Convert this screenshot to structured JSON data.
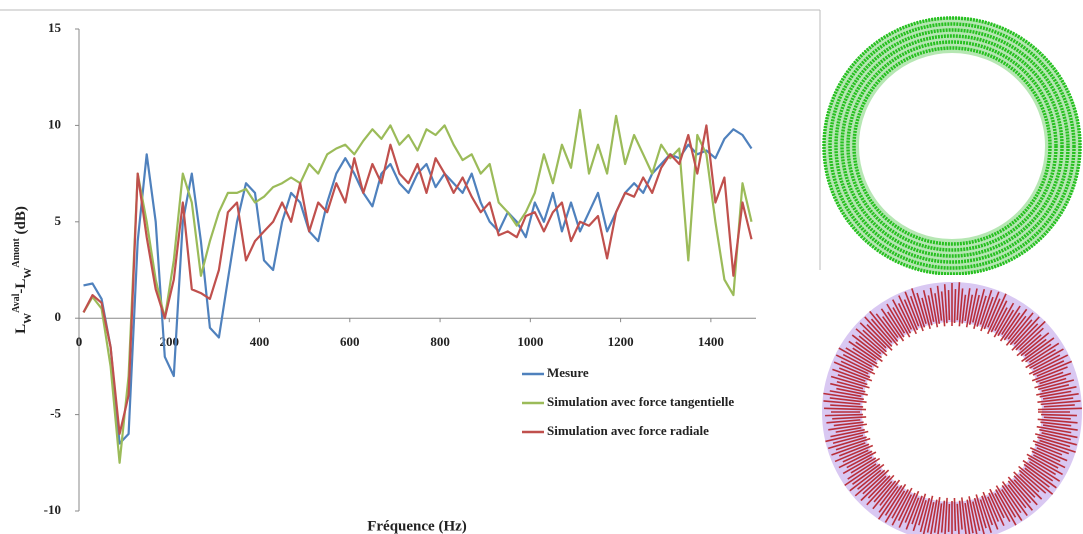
{
  "chart_data": {
    "type": "line",
    "y_label": [
      {
        "text": "L"
      },
      {
        "text": "W",
        "style": "sub"
      },
      {
        "text": "Aval",
        "style": "sup"
      },
      {
        "text": "-L"
      },
      {
        "text": "W",
        "style": "sub"
      },
      {
        "text": "Amont",
        "style": "sup"
      },
      {
        "text": " (dB)"
      }
    ],
    "x_label": "Fréquence (Hz)",
    "xlim": [
      0,
      1500
    ],
    "xticks": [
      0,
      200,
      400,
      600,
      800,
      1000,
      1200,
      1400
    ],
    "ylim": [
      -10,
      15
    ],
    "yticks": [
      -10,
      -5,
      0,
      5,
      10,
      15
    ],
    "legend": "lower right",
    "x": [
      10,
      30,
      50,
      70,
      90,
      110,
      130,
      150,
      170,
      190,
      210,
      230,
      250,
      270,
      290,
      310,
      330,
      350,
      370,
      390,
      410,
      430,
      450,
      470,
      490,
      510,
      530,
      550,
      570,
      590,
      610,
      630,
      650,
      670,
      690,
      710,
      730,
      750,
      770,
      790,
      810,
      830,
      850,
      870,
      890,
      910,
      930,
      950,
      970,
      990,
      1010,
      1030,
      1050,
      1070,
      1090,
      1110,
      1130,
      1150,
      1170,
      1190,
      1210,
      1230,
      1250,
      1270,
      1290,
      1310,
      1330,
      1350,
      1370,
      1390,
      1410,
      1430,
      1450,
      1470,
      1490
    ],
    "series": [
      {
        "name": "Mesure",
        "color": "#4f81bd",
        "values": [
          1.7,
          1.8,
          1.0,
          -1.5,
          -6.5,
          -6,
          4,
          8.5,
          5,
          -2,
          -3,
          5,
          7.5,
          4,
          -0.5,
          -1,
          2,
          5,
          7,
          6.5,
          3,
          2.5,
          5,
          6.5,
          6,
          4.5,
          4,
          6,
          7.5,
          8.3,
          7.5,
          6.5,
          5.8,
          7.5,
          8,
          7,
          6.5,
          7.5,
          8,
          6.8,
          7.5,
          7,
          6.5,
          7.5,
          6,
          5,
          4.5,
          5.5,
          5,
          4.2,
          6,
          5,
          6.5,
          4.5,
          6,
          4.5,
          5.5,
          6.5,
          4.5,
          5.5,
          6.5,
          7,
          6.5,
          7.5,
          8,
          8.5,
          8.3,
          9,
          8.5,
          8.7,
          8.3,
          9.3,
          9.8,
          9.5,
          8.8
        ]
      },
      {
        "name": "Simulation avec force tangentielle",
        "color": "#9bbb59",
        "values": [
          0.3,
          1.1,
          0.5,
          -2.5,
          -7.5,
          -3,
          7.5,
          5,
          2,
          0,
          3,
          7.5,
          6,
          2.2,
          4,
          5.5,
          6.5,
          6.5,
          6.7,
          6,
          6.3,
          6.8,
          7,
          7.3,
          7,
          8,
          7.5,
          8.5,
          8.8,
          9,
          8.5,
          9.2,
          9.8,
          9.3,
          10,
          9,
          9.5,
          8.7,
          9.8,
          9.5,
          10,
          9,
          8.2,
          8.5,
          7.5,
          8,
          6,
          5.5,
          4.8,
          5.5,
          6.5,
          8.5,
          7,
          9,
          7.8,
          10.8,
          7.5,
          9,
          7.5,
          10.5,
          8,
          9.5,
          8.5,
          7.5,
          9,
          8.3,
          8.8,
          3,
          9.5,
          8.5,
          5,
          2,
          1.2,
          7,
          5
        ]
      },
      {
        "name": "Simulation avec force radiale",
        "color": "#c0504d",
        "values": [
          0.3,
          1.2,
          0.8,
          -1.5,
          -6,
          -4,
          7.5,
          4.2,
          1.5,
          0,
          2,
          6,
          1.5,
          1.3,
          1,
          2.5,
          5.5,
          6,
          3,
          4,
          4.5,
          5,
          6,
          5,
          7,
          4.5,
          6,
          5.5,
          7,
          6,
          8.3,
          6.5,
          8,
          7,
          9,
          7.5,
          7,
          8,
          6.5,
          8.3,
          7.5,
          6.5,
          7.3,
          6.3,
          5.5,
          6,
          4.3,
          4.5,
          4.2,
          5.3,
          5.5,
          4.5,
          5.5,
          6,
          4,
          5,
          4.8,
          5.3,
          3.1,
          5.5,
          6.5,
          6.3,
          7.3,
          6.5,
          7.8,
          8.5,
          8,
          9.5,
          7.5,
          10,
          6,
          7.3,
          2.2,
          6,
          4.1
        ]
      }
    ]
  }
}
